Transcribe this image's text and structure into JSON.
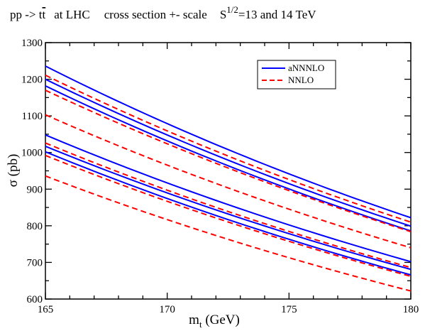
{
  "chart_data": {
    "type": "line",
    "title": {
      "process": "pp -> t",
      "bar_t": "t",
      "location": "at  LHC",
      "description": "cross section +- scale",
      "energy_prefix": "S",
      "energy_exponent": "1/2",
      "energy_suffix": "=13 and 14 TeV"
    },
    "xlabel": {
      "main": "m",
      "subscript": "t",
      "unit": " (GeV)"
    },
    "ylabel": "σ (pb)",
    "xlim": [
      165,
      180
    ],
    "ylim": [
      600,
      1300
    ],
    "xticks": [
      165,
      170,
      175,
      180
    ],
    "yticks": [
      600,
      700,
      800,
      900,
      1000,
      1100,
      1200,
      1300
    ],
    "grid": false,
    "legend_position": "top-right",
    "legend": [
      {
        "label": "aNNNLO",
        "color": "#0000ff",
        "style": "solid"
      },
      {
        "label": "NNLO",
        "color": "#ff0000",
        "style": "dashed"
      }
    ],
    "x": [
      165,
      180
    ],
    "series": [
      {
        "group": "aNNNLO",
        "color": "#0000ff",
        "style": "solid",
        "values": [
          1236,
          822
        ]
      },
      {
        "group": "aNNNLO",
        "color": "#0000ff",
        "style": "solid",
        "values": [
          1200,
          799
        ]
      },
      {
        "group": "aNNNLO",
        "color": "#0000ff",
        "style": "solid",
        "values": [
          1182,
          786
        ]
      },
      {
        "group": "aNNNLO",
        "color": "#0000ff",
        "style": "solid",
        "values": [
          1048,
          702
        ]
      },
      {
        "group": "aNNNLO",
        "color": "#0000ff",
        "style": "solid",
        "values": [
          1017,
          681
        ]
      },
      {
        "group": "aNNNLO",
        "color": "#0000ff",
        "style": "solid",
        "values": [
          1002,
          666
        ]
      },
      {
        "group": "NNLO",
        "color": "#ff0000",
        "style": "dashed",
        "values": [
          1211,
          810
        ]
      },
      {
        "group": "NNLO",
        "color": "#ff0000",
        "style": "dashed",
        "values": [
          1170,
          784
        ]
      },
      {
        "group": "NNLO",
        "color": "#ff0000",
        "style": "dashed",
        "values": [
          1103,
          740
        ]
      },
      {
        "group": "NNLO",
        "color": "#ff0000",
        "style": "dashed",
        "values": [
          1026,
          686
        ]
      },
      {
        "group": "NNLO",
        "color": "#ff0000",
        "style": "dashed",
        "values": [
          992,
          662
        ]
      },
      {
        "group": "NNLO",
        "color": "#ff0000",
        "style": "dashed",
        "values": [
          936,
          622
        ]
      }
    ]
  }
}
